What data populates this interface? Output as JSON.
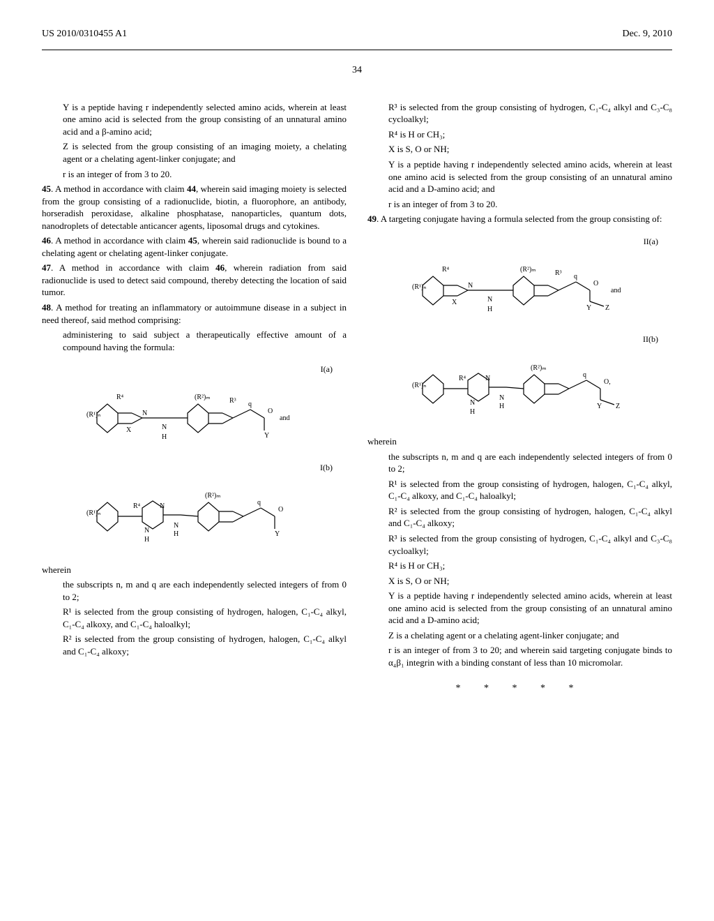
{
  "header": {
    "pub_number": "US 2010/0310455 A1",
    "date": "Dec. 9, 2010"
  },
  "page_number": "34",
  "left_col": {
    "y_def": "Y is a peptide having r independently selected amino acids, wherein at least one amino acid is selected from the group consisting of an unnatural amino acid and a β-amino acid;",
    "z_def": "Z is selected from the group consisting of an imaging moiety, a chelating agent or a chelating agent-linker conjugate; and",
    "r_def": "r is an integer of from 3 to 20.",
    "claim45_num": "45",
    "claim45": ". A method in accordance with claim ",
    "claim45_ref": "44",
    "claim45_rest": ", wherein said imaging moiety is selected from the group consisting of a radionuclide, biotin, a fluorophore, an antibody, horseradish peroxidase, alkaline phosphatase, nanoparticles, quantum dots, nanodroplets of detectable anticancer agents, liposomal drugs and cytokines.",
    "claim46_num": "46",
    "claim46": ". A method in accordance with claim ",
    "claim46_ref": "45",
    "claim46_rest": ", wherein said radionuclide is bound to a chelating agent or chelating agent-linker conjugate.",
    "claim47_num": "47",
    "claim47": ". A method in accordance with claim ",
    "claim47_ref": "46",
    "claim47_rest": ", wherein radiation from said radionuclide is used to detect said compound, thereby detecting the location of said tumor.",
    "claim48_num": "48",
    "claim48": ". A method for treating an inflammatory or autoimmune disease in a subject in need thereof, said method comprising:",
    "claim48_step": "administering to said subject a therapeutically effective amount of a compound having the formula:",
    "formula_ia": "I(a)",
    "formula_ib": "I(b)",
    "formula_and": "and",
    "wherein": "wherein",
    "subscripts": "the subscripts n, m and q are each independently selected integers of from 0 to 2;",
    "r1_def": "R¹ is selected from the group consisting of hydrogen, halogen, C₁-C₄ alkyl, C₁-C₄ alkoxy, and C₁-C₄ haloalkyl;",
    "r2_def": "R² is selected from the group consisting of hydrogen, halogen, C₁-C₄ alkyl and C₁-C₄ alkoxy;"
  },
  "right_col": {
    "r3_def": "R³ is selected from the group consisting of hydrogen, C₁-C₄ alkyl and C₃-C₈ cycloalkyl;",
    "r4_def": "R⁴ is H or CH₃;",
    "x_def": "X is S, O or NH;",
    "y_def": "Y is a peptide having r independently selected amino acids, wherein at least one amino acid is selected from the group consisting of an unnatural amino acid and a D-amino acid; and",
    "r_def": "r is an integer of from 3 to 20.",
    "claim49_num": "49",
    "claim49": ". A targeting conjugate having a formula selected from the group consisting of:",
    "formula_iia": "II(a)",
    "formula_iib": "II(b)",
    "formula_and": "and",
    "wherein": "wherein",
    "subscripts": "the subscripts n, m and q are each independently selected integers of from 0 to 2;",
    "r1_def": "R¹ is selected from the group consisting of hydrogen, halogen, C₁-C₄ alkyl, C₁-C₄ alkoxy, and C₁-C₄ haloalkyl;",
    "r2_def": "R² is selected from the group consisting of hydrogen, halogen, C₁-C₄ alkyl and C₁-C₄ alkoxy;",
    "r3_def2": "R³ is selected from the group consisting of hydrogen, C₁-C₄ alkyl and C₃-C₈ cycloalkyl;",
    "r4_def2": "R⁴ is H or CH₃;",
    "x_def2": "X is S, O or NH;",
    "y_def2": "Y is a peptide having r independently selected amino acids, wherein at least one amino acid is selected from the group consisting of an unnatural amino acid and a D-amino acid;",
    "z_def": "Z is a chelating agent or a chelating agent-linker conjugate; and",
    "r_def2": "r is an integer of from 3 to 20; and wherein said targeting conjugate binds to α₄β₁ integrin with a binding constant of less than 10 micromolar.",
    "end_marks": "* * * * *"
  },
  "chem_svg": {
    "structure_Ia": "<svg width='320' height='100' viewBox='0 0 320 100'><g stroke='#000' stroke-width='1.2' fill='none'><polygon points='20,45 35,32 50,45 50,60 35,73 20,60'/><line x1='50' y1='45' x2='70' y2='45'/><line x1='50' y1='60' x2='70' y2='60'/><line x1='70' y1='45' x2='85' y2='52'/><line x1='70' y1='60' x2='85' y2='52'/><line x1='85' y1='52' x2='120' y2='52'/><polygon points='150,45 165,32 180,45 180,60 165,73 150,60'/><line x1='120' y1='52' x2='150' y2='52'/><line x1='180' y1='45' x2='200' y2='45'/><line x1='180' y1='60' x2='200' y2='60'/><line x1='200' y1='45' x2='215' y2='52'/><line x1='200' y1='60' x2='215' y2='52'/><line x1='215' y1='52' x2='240' y2='40'/><line x1='240' y1='40' x2='260' y2='52'/><line x1='260' y1='52' x2='260' y2='70'/></g><text x='5' y='50' font-size='10'>(R¹)ₙ</text><text x='48' y='25' font-size='10'>R⁴</text><text x='85' y='48' font-size='10'>N</text><text x='62' y='72' font-size='10'>X</text><text x='113' y='68' font-size='10'>N</text><text x='113' y='82' font-size='10'>H</text><text x='160' y='25' font-size='10'>(R²)ₘ</text><text x='210' y='30' font-size='10'>R³</text><text x='237' y='35' font-size='10'>q</text><text x='265' y='45' font-size='10'>O</text><text x='260' y='80' font-size='10'>Y</text><text x='282' y='55' font-size='10'>and</text></svg>",
    "structure_Ib": "<svg width='320' height='100' viewBox='0 0 320 100'><g stroke='#000' stroke-width='1.2' fill='none'><polygon points='20,45 35,32 50,45 50,60 35,73 20,60'/><line x1='50' y1='52' x2='85' y2='52'/><polygon points='85,40 100,30 115,40 115,60 100,70 85,60'/><line x1='115' y1='50' x2='140' y2='50'/><polygon points='165,45 180,32 195,45 195,60 180,73 165,60'/><line x1='140' y1='50' x2='165' y2='52'/><line x1='195' y1='45' x2='215' y2='45'/><line x1='195' y1='60' x2='215' y2='60'/><line x1='215' y1='45' x2='230' y2='52'/><line x1='215' y1='60' x2='230' y2='52'/><line x1='230' y1='52' x2='255' y2='40'/><line x1='255' y1='40' x2='275' y2='52'/><line x1='275' y1='52' x2='275' y2='70'/></g><text x='5' y='50' font-size='10'>(R¹)ₙ</text><text x='72' y='40' font-size='10'>R⁴</text><text x='110' y='40' font-size='10'>N</text><text x='88' y='75' font-size='10'>N</text><text x='88' y='88' font-size='10'>H</text><text x='130' y='68' font-size='10'>N</text><text x='130' y='80' font-size='10'>H</text><text x='175' y='25' font-size='10'>(R²)ₘ</text><text x='250' y='35' font-size='10'>q</text><text x='280' y='45' font-size='10'>O</text><text x='275' y='80' font-size='10'>Y</text></svg>",
    "structure_IIa": "<svg width='320' height='100' viewBox='0 0 320 100'><g stroke='#000' stroke-width='1.2' fill='none'><polygon points='20,45 35,32 50,45 50,60 35,73 20,60'/><line x1='50' y1='45' x2='70' y2='45'/><line x1='50' y1='60' x2='70' y2='60'/><line x1='70' y1='45' x2='85' y2='52'/><line x1='70' y1='60' x2='85' y2='52'/><line x1='85' y1='52' x2='120' y2='52'/><polygon points='150,45 165,32 180,45 180,60 165,73 150,60'/><line x1='120' y1='52' x2='150' y2='52'/><line x1='180' y1='45' x2='200' y2='45'/><line x1='180' y1='60' x2='200' y2='60'/><line x1='200' y1='45' x2='215' y2='52'/><line x1='200' y1='60' x2='215' y2='52'/><line x1='215' y1='52' x2='240' y2='40'/><line x1='240' y1='40' x2='260' y2='52'/><line x1='260' y1='52' x2='260' y2='68'/><line x1='260' y1='68' x2='280' y2='75'/></g><text x='5' y='50' font-size='10'>(R¹)ₙ</text><text x='48' y='25' font-size='10'>R⁴</text><text x='85' y='48' font-size='10'>N</text><text x='62' y='72' font-size='10'>X</text><text x='113' y='68' font-size='10'>N</text><text x='113' y='82' font-size='10'>H</text><text x='160' y='25' font-size='10'>(R²)ₘ</text><text x='210' y='30' font-size='10'>R³</text><text x='237' y='35' font-size='10'>q</text><text x='265' y='45' font-size='10'>O</text><text x='255' y='80' font-size='10'>Y</text><text x='282' y='80' font-size='10'>Z</text><text x='290' y='55' font-size='10'>and</text></svg>",
    "structure_IIb": "<svg width='320' height='100' viewBox='0 0 320 100'><g stroke='#000' stroke-width='1.2' fill='none'><polygon points='20,45 35,32 50,45 50,60 35,73 20,60'/><line x1='50' y1='52' x2='85' y2='52'/><polygon points='85,40 100,30 115,40 115,60 100,70 85,60'/><line x1='115' y1='50' x2='140' y2='50'/><polygon points='165,45 180,32 195,45 195,60 180,73 165,60'/><line x1='140' y1='50' x2='165' y2='52'/><line x1='195' y1='45' x2='215' y2='45'/><line x1='195' y1='60' x2='215' y2='60'/><line x1='215' y1='45' x2='230' y2='52'/><line x1='215' y1='60' x2='230' y2='52'/><line x1='230' y1='52' x2='255' y2='40'/><line x1='255' y1='40' x2='275' y2='52'/><line x1='275' y1='52' x2='275' y2='68'/><line x1='275' y1='68' x2='295' y2='75'/></g><text x='5' y='50' font-size='10'>(R¹)ₙ</text><text x='72' y='40' font-size='10'>R⁴</text><text x='110' y='40' font-size='10'>N</text><text x='88' y='75' font-size='10'>N</text><text x='88' y='88' font-size='10'>H</text><text x='130' y='68' font-size='10'>N</text><text x='130' y='80' font-size='10'>H</text><text x='175' y='25' font-size='10'>(R²)ₘ</text><text x='250' y='35' font-size='10'>q</text><text x='280' y='45' font-size='10'>O,</text><text x='270' y='80' font-size='10'>Y</text><text x='297' y='80' font-size='10'>Z</text></svg>"
  }
}
